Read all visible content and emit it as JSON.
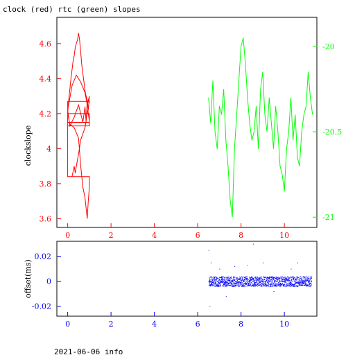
{
  "title": "clock (red) rtc (green) slopes",
  "footer": "2021-06-06 info",
  "colors": {
    "clock": "#ff0000",
    "rtc": "#00ff00",
    "offset": "#0000ff",
    "frame": "#000000"
  },
  "chart_data": [
    {
      "type": "line",
      "title": "clock (red) rtc (green) slopes",
      "xlim": [
        -0.5,
        11.5
      ],
      "x_ticks": [
        "0",
        "2",
        "4",
        "6",
        "8",
        "10"
      ],
      "x_tick_values": [
        0,
        2,
        4,
        6,
        8,
        10
      ],
      "ylabel": "clockslope",
      "ylim_left": [
        3.55,
        4.75
      ],
      "y_ticks_left": [
        "3.6",
        "3.8",
        "4",
        "4.2",
        "4.4",
        "4.6"
      ],
      "y_tick_values_left": [
        3.6,
        3.8,
        4.0,
        4.2,
        4.4,
        4.6
      ],
      "ylim_right": [
        -21.06,
        -19.83
      ],
      "y_ticks_right": [
        "-20",
        "-20.5",
        "-21"
      ],
      "y_tick_values_right": [
        -20,
        -20.5,
        -21
      ],
      "series": [
        {
          "axis": "left",
          "color": "#ff0000",
          "x": [
            0.0,
            0.05,
            0.1,
            0.15,
            0.2,
            0.25,
            0.3,
            0.35,
            0.4,
            0.45,
            0.5,
            0.55,
            0.6,
            0.65,
            0.7,
            0.75,
            0.8,
            0.85,
            0.9,
            0.95,
            1.0,
            0.9,
            0.8,
            0.6,
            0.4,
            0.2,
            0.0,
            0.1,
            0.3,
            0.5,
            0.6,
            0.7,
            0.8,
            0.85,
            0.9,
            0.95,
            1.0,
            1.0,
            0.0,
            0.0,
            1.0,
            0.9,
            0.8,
            0.6,
            0.5,
            0.4,
            0.35,
            0.3,
            0.2,
            0.1,
            0.0,
            0.0,
            1.0,
            1.0,
            0.0,
            0.1,
            0.3,
            0.5,
            0.6,
            0.7,
            0.8,
            0.85,
            0.9,
            0.95,
            1.0,
            1.0,
            0.0
          ],
          "y": [
            4.2,
            4.28,
            4.34,
            4.4,
            4.45,
            4.5,
            4.53,
            4.58,
            4.6,
            4.62,
            4.66,
            4.62,
            4.55,
            4.48,
            4.43,
            4.38,
            4.33,
            4.3,
            4.28,
            4.22,
            4.3,
            4.25,
            4.32,
            4.38,
            4.42,
            4.36,
            4.22,
            4.13,
            4.18,
            4.25,
            4.2,
            4.15,
            4.24,
            4.15,
            4.28,
            4.2,
            4.16,
            4.13,
            4.13,
            4.27,
            4.27,
            4.2,
            4.12,
            4.05,
            3.97,
            3.9,
            3.86,
            3.9,
            3.84,
            3.84,
            3.84,
            4.15,
            4.15,
            4.2,
            4.2,
            4.14,
            4.12,
            4.06,
            3.9,
            3.78,
            3.72,
            3.66,
            3.6,
            3.7,
            3.78,
            3.84,
            3.84
          ]
        },
        {
          "axis": "right",
          "color": "#00ff00",
          "x": [
            6.5,
            6.6,
            6.7,
            6.8,
            6.9,
            7.0,
            7.1,
            7.2,
            7.3,
            7.4,
            7.5,
            7.6,
            7.7,
            7.8,
            7.9,
            8.0,
            8.1,
            8.2,
            8.3,
            8.4,
            8.5,
            8.6,
            8.7,
            8.8,
            8.9,
            9.0,
            9.1,
            9.2,
            9.3,
            9.4,
            9.5,
            9.6,
            9.7,
            9.8,
            9.9,
            10.0,
            10.1,
            10.2,
            10.3,
            10.4,
            10.5,
            10.6,
            10.7,
            10.8,
            10.9,
            11.0,
            11.1,
            11.2,
            11.3
          ],
          "y": [
            -20.3,
            -20.45,
            -20.2,
            -20.5,
            -20.6,
            -20.35,
            -20.4,
            -20.25,
            -20.55,
            -20.7,
            -20.9,
            -21.0,
            -20.6,
            -20.4,
            -20.2,
            -20.0,
            -19.95,
            -20.1,
            -20.3,
            -20.45,
            -20.55,
            -20.5,
            -20.35,
            -20.6,
            -20.25,
            -20.15,
            -20.4,
            -20.5,
            -20.3,
            -20.45,
            -20.6,
            -20.35,
            -20.5,
            -20.7,
            -20.75,
            -20.85,
            -20.6,
            -20.5,
            -20.3,
            -20.55,
            -20.4,
            -20.65,
            -20.7,
            -20.5,
            -20.4,
            -20.35,
            -20.15,
            -20.3,
            -20.4
          ]
        }
      ]
    },
    {
      "type": "scatter",
      "xlim": [
        -0.5,
        11.5
      ],
      "x_ticks": [
        "0",
        "2",
        "4",
        "6",
        "8",
        "10"
      ],
      "x_tick_values": [
        0,
        2,
        4,
        6,
        8,
        10
      ],
      "ylabel": "offset(ms)",
      "ylim": [
        -0.028,
        0.032
      ],
      "y_ticks": [
        "-0.02",
        "0",
        "0.02"
      ],
      "y_tick_values": [
        -0.02,
        0,
        0.02
      ],
      "series": [
        {
          "color": "#0000ff",
          "x_range": [
            6.5,
            11.25
          ],
          "band": [
            -0.004,
            0.004
          ],
          "outliers_x": [
            6.5,
            6.55,
            6.6,
            7.0,
            7.3,
            7.7,
            8.3,
            8.55,
            9.0,
            9.5,
            10.3,
            10.6
          ],
          "outliers_y": [
            0.025,
            -0.02,
            0.015,
            0.01,
            -0.012,
            0.012,
            0.013,
            0.03,
            0.015,
            -0.008,
            0.01,
            0.015
          ]
        }
      ]
    }
  ]
}
